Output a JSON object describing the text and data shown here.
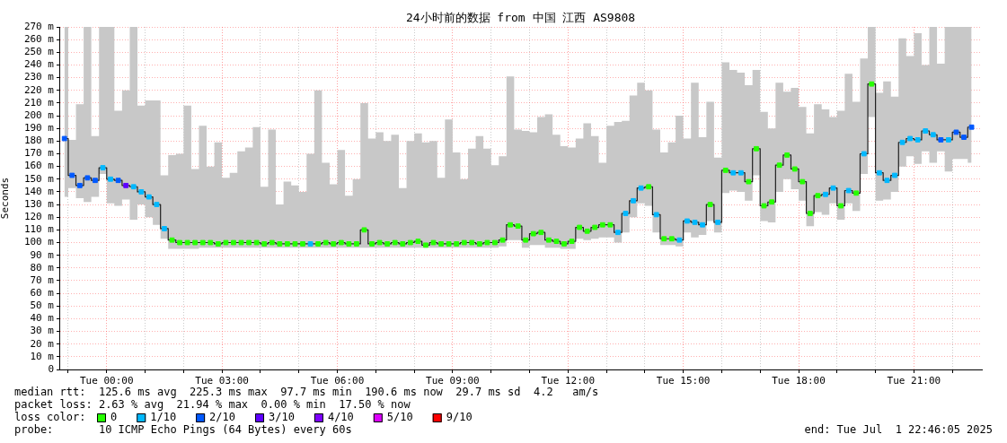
{
  "chart_data": {
    "type": "step",
    "title": "24小时前的数据 from 中国 江西 AS9808",
    "ylabel": "Seconds",
    "x": [
      "2025-06-30T22:54",
      "2025-06-30T23:06",
      "2025-06-30T23:18",
      "2025-06-30T23:30",
      "2025-06-30T23:42",
      "2025-06-30T23:54",
      "2025-07-01T00:06",
      "2025-07-01T00:18",
      "2025-07-01T00:30",
      "2025-07-01T00:42",
      "2025-07-01T00:54",
      "2025-07-01T01:06",
      "2025-07-01T01:18",
      "2025-07-01T01:30",
      "2025-07-01T01:42",
      "2025-07-01T01:54",
      "2025-07-01T02:06",
      "2025-07-01T02:18",
      "2025-07-01T02:30",
      "2025-07-01T02:42",
      "2025-07-01T02:54",
      "2025-07-01T03:06",
      "2025-07-01T03:18",
      "2025-07-01T03:30",
      "2025-07-01T03:42",
      "2025-07-01T03:54",
      "2025-07-01T04:06",
      "2025-07-01T04:18",
      "2025-07-01T04:30",
      "2025-07-01T04:42",
      "2025-07-01T04:54",
      "2025-07-01T05:06",
      "2025-07-01T05:18",
      "2025-07-01T05:30",
      "2025-07-01T05:42",
      "2025-07-01T05:54",
      "2025-07-01T06:06",
      "2025-07-01T06:18",
      "2025-07-01T06:30",
      "2025-07-01T06:42",
      "2025-07-01T06:54",
      "2025-07-01T07:06",
      "2025-07-01T07:18",
      "2025-07-01T07:30",
      "2025-07-01T07:42",
      "2025-07-01T07:54",
      "2025-07-01T08:06",
      "2025-07-01T08:18",
      "2025-07-01T08:30",
      "2025-07-01T08:42",
      "2025-07-01T08:54",
      "2025-07-01T09:06",
      "2025-07-01T09:18",
      "2025-07-01T09:30",
      "2025-07-01T09:42",
      "2025-07-01T09:54",
      "2025-07-01T10:06",
      "2025-07-01T10:18",
      "2025-07-01T10:30",
      "2025-07-01T10:42",
      "2025-07-01T10:54",
      "2025-07-01T11:06",
      "2025-07-01T11:18",
      "2025-07-01T11:30",
      "2025-07-01T11:42",
      "2025-07-01T11:54",
      "2025-07-01T12:06",
      "2025-07-01T12:18",
      "2025-07-01T12:30",
      "2025-07-01T12:42",
      "2025-07-01T12:54",
      "2025-07-01T13:06",
      "2025-07-01T13:18",
      "2025-07-01T13:30",
      "2025-07-01T13:42",
      "2025-07-01T13:54",
      "2025-07-01T14:06",
      "2025-07-01T14:18",
      "2025-07-01T14:30",
      "2025-07-01T14:42",
      "2025-07-01T14:54",
      "2025-07-01T15:06",
      "2025-07-01T15:18",
      "2025-07-01T15:30",
      "2025-07-01T15:42",
      "2025-07-01T15:54",
      "2025-07-01T16:06",
      "2025-07-01T16:18",
      "2025-07-01T16:30",
      "2025-07-01T16:42",
      "2025-07-01T16:54",
      "2025-07-01T17:06",
      "2025-07-01T17:18",
      "2025-07-01T17:30",
      "2025-07-01T17:42",
      "2025-07-01T17:54",
      "2025-07-01T18:06",
      "2025-07-01T18:18",
      "2025-07-01T18:30",
      "2025-07-01T18:42",
      "2025-07-01T18:54",
      "2025-07-01T19:06",
      "2025-07-01T19:18",
      "2025-07-01T19:30",
      "2025-07-01T19:42",
      "2025-07-01T19:54",
      "2025-07-01T20:06",
      "2025-07-01T20:18",
      "2025-07-01T20:30",
      "2025-07-01T20:42",
      "2025-07-01T20:54",
      "2025-07-01T21:06",
      "2025-07-01T21:18",
      "2025-07-01T21:30",
      "2025-07-01T21:42",
      "2025-07-01T21:54",
      "2025-07-01T22:06",
      "2025-07-01T22:18",
      "2025-07-01T22:30"
    ],
    "xlim": [
      "2025-06-30T22:46",
      "2025-07-01T22:46"
    ],
    "xticks": [
      {
        "value": "2025-06-30T23:00",
        "label": null
      },
      {
        "value": "2025-07-01T00:00",
        "label": "Tue 00:00"
      },
      {
        "value": "2025-07-01T01:00",
        "label": null
      },
      {
        "value": "2025-07-01T02:00",
        "label": null
      },
      {
        "value": "2025-07-01T03:00",
        "label": "Tue 03:00"
      },
      {
        "value": "2025-07-01T04:00",
        "label": null
      },
      {
        "value": "2025-07-01T05:00",
        "label": null
      },
      {
        "value": "2025-07-01T06:00",
        "label": "Tue 06:00"
      },
      {
        "value": "2025-07-01T07:00",
        "label": null
      },
      {
        "value": "2025-07-01T08:00",
        "label": null
      },
      {
        "value": "2025-07-01T09:00",
        "label": "Tue 09:00"
      },
      {
        "value": "2025-07-01T10:00",
        "label": null
      },
      {
        "value": "2025-07-01T11:00",
        "label": null
      },
      {
        "value": "2025-07-01T12:00",
        "label": "Tue 12:00"
      },
      {
        "value": "2025-07-01T13:00",
        "label": null
      },
      {
        "value": "2025-07-01T14:00",
        "label": null
      },
      {
        "value": "2025-07-01T15:00",
        "label": "Tue 15:00"
      },
      {
        "value": "2025-07-01T16:00",
        "label": null
      },
      {
        "value": "2025-07-01T17:00",
        "label": null
      },
      {
        "value": "2025-07-01T18:00",
        "label": "Tue 18:00"
      },
      {
        "value": "2025-07-01T19:00",
        "label": null
      },
      {
        "value": "2025-07-01T20:00",
        "label": null
      },
      {
        "value": "2025-07-01T21:00",
        "label": "Tue 21:00"
      },
      {
        "value": "2025-07-01T22:00",
        "label": null
      }
    ],
    "ylim": [
      0,
      270
    ],
    "yticks": [
      0,
      {
        "value": 10,
        "label": "10 m"
      },
      {
        "value": 20,
        "label": "20 m"
      },
      {
        "value": 30,
        "label": "30 m"
      },
      {
        "value": 40,
        "label": "40 m"
      },
      {
        "value": 50,
        "label": "50 m"
      },
      {
        "value": 60,
        "label": "60 m"
      },
      {
        "value": 70,
        "label": "70 m"
      },
      {
        "value": 80,
        "label": "80 m"
      },
      {
        "value": 90,
        "label": "90 m"
      },
      {
        "value": 100,
        "label": "100 m"
      },
      {
        "value": 110,
        "label": "110 m"
      },
      {
        "value": 120,
        "label": "120 m"
      },
      {
        "value": 130,
        "label": "130 m"
      },
      {
        "value": 140,
        "label": "140 m"
      },
      {
        "value": 150,
        "label": "150 m"
      },
      {
        "value": 160,
        "label": "160 m"
      },
      {
        "value": 170,
        "label": "170 m"
      },
      {
        "value": 180,
        "label": "180 m"
      },
      {
        "value": 190,
        "label": "190 m"
      },
      {
        "value": 200,
        "label": "200 m"
      },
      {
        "value": 210,
        "label": "210 m"
      },
      {
        "value": 220,
        "label": "220 m"
      },
      {
        "value": 230,
        "label": "230 m"
      },
      {
        "value": 240,
        "label": "240 m"
      },
      {
        "value": 250,
        "label": "250 m"
      },
      {
        "value": 260,
        "label": "260 m"
      },
      {
        "value": 270,
        "label": "270 m"
      }
    ],
    "grid": true,
    "legend": "bottom left",
    "legend_title": "loss color:",
    "series": [
      {
        "color": "#202020",
        "values": [
          182,
          153,
          145,
          151,
          149,
          159,
          150,
          149,
          145,
          144,
          140,
          136,
          130,
          111,
          102,
          100,
          100,
          100,
          100,
          100,
          99,
          100,
          100,
          100,
          100,
          100,
          99,
          100,
          99,
          99,
          99,
          99,
          99,
          99,
          100,
          99,
          100,
          99,
          99,
          110,
          99,
          100,
          99,
          100,
          99,
          100,
          101,
          98,
          100,
          99,
          99,
          99,
          100,
          100,
          99,
          100,
          100,
          102,
          114,
          113,
          102,
          107,
          108,
          102,
          101,
          99,
          101,
          112,
          109,
          112,
          114,
          114,
          108,
          123,
          133,
          143,
          144,
          122,
          103,
          103,
          102,
          117,
          116,
          114,
          130,
          116,
          157,
          155,
          155,
          148,
          174,
          129,
          132,
          161,
          169,
          158,
          148,
          123,
          137,
          138,
          143,
          129,
          141,
          139,
          170,
          225,
          155,
          149,
          153,
          179,
          182,
          181,
          188,
          185,
          181,
          181,
          187,
          183,
          191
        ],
        "lower": [
          136,
          143,
          135,
          132,
          136,
          154,
          131,
          129,
          134,
          118,
          130,
          120,
          114,
          103,
          95,
          95,
          95,
          95,
          96,
          96,
          96,
          96,
          96,
          96,
          96,
          96,
          96,
          96,
          96,
          96,
          96,
          96,
          96,
          96,
          96,
          96,
          96,
          96,
          96,
          96,
          96,
          96,
          96,
          96,
          96,
          96,
          96,
          96,
          96,
          96,
          96,
          96,
          96,
          96,
          96,
          96,
          96,
          97,
          102,
          102,
          96,
          98,
          98,
          96,
          96,
          95,
          95,
          103,
          102,
          103,
          104,
          104,
          100,
          108,
          120,
          131,
          129,
          108,
          98,
          98,
          97,
          108,
          104,
          106,
          117,
          108,
          139,
          141,
          140,
          133,
          153,
          117,
          116,
          140,
          150,
          142,
          133,
          113,
          124,
          122,
          131,
          118,
          131,
          125,
          154,
          199,
          133,
          134,
          140,
          160,
          168,
          162,
          172,
          163,
          172,
          156,
          166,
          166,
          163
        ],
        "upper": [
          270,
          181,
          209,
          270,
          184,
          270,
          270,
          204,
          220,
          270,
          208,
          212,
          212,
          153,
          169,
          170,
          208,
          158,
          192,
          160,
          179,
          151,
          155,
          172,
          175,
          191,
          144,
          189,
          130,
          148,
          145,
          140,
          170,
          220,
          163,
          146,
          173,
          137,
          150,
          210,
          182,
          187,
          180,
          185,
          143,
          180,
          186,
          179,
          180,
          151,
          197,
          171,
          150,
          174,
          184,
          174,
          161,
          168,
          231,
          189,
          188,
          187,
          199,
          201,
          185,
          176,
          175,
          182,
          194,
          184,
          163,
          192,
          195,
          196,
          216,
          226,
          220,
          189,
          171,
          179,
          200,
          182,
          226,
          183,
          211,
          167,
          242,
          236,
          234,
          224,
          236,
          203,
          190,
          226,
          219,
          222,
          207,
          186,
          209,
          205,
          199,
          204,
          233,
          211,
          245,
          270,
          218,
          227,
          215,
          261,
          247,
          265,
          240,
          270,
          241,
          270,
          270,
          270,
          270
        ]
      },
      {
        "type": "scatter",
        "marker": "square",
        "name": "0",
        "color": "#26ff00",
        "values": [
          null,
          null,
          null,
          null,
          null,
          null,
          null,
          null,
          null,
          null,
          null,
          null,
          null,
          null,
          102,
          100,
          100,
          100,
          100,
          100,
          99,
          100,
          100,
          100,
          100,
          100,
          99,
          100,
          99,
          99,
          99,
          99,
          null,
          99,
          100,
          99,
          100,
          99,
          99,
          110,
          99,
          100,
          99,
          100,
          99,
          100,
          101,
          98,
          100,
          99,
          99,
          99,
          100,
          100,
          99,
          100,
          100,
          102,
          114,
          113,
          102,
          107,
          108,
          102,
          101,
          99,
          101,
          112,
          109,
          112,
          114,
          114,
          null,
          null,
          null,
          null,
          144,
          null,
          103,
          103,
          null,
          null,
          null,
          null,
          130,
          null,
          157,
          null,
          null,
          148,
          174,
          129,
          132,
          161,
          169,
          158,
          148,
          123,
          137,
          null,
          null,
          129,
          null,
          139,
          null,
          225,
          null,
          null,
          null,
          null,
          null,
          null,
          null,
          null,
          null,
          null,
          null,
          null,
          null
        ]
      },
      {
        "type": "scatter",
        "marker": "square",
        "name": "1/10",
        "color": "#00b8ff",
        "x": [
          "2025-06-30T23:54",
          "2025-07-01T00:06",
          "2025-07-01T00:42",
          "2025-07-01T00:54",
          "2025-07-01T01:06",
          "2025-07-01T01:18",
          "2025-07-01T01:30",
          "2025-07-01T05:18",
          "2025-07-01T13:18",
          "2025-07-01T13:30",
          "2025-07-01T13:42",
          "2025-07-01T13:54",
          "2025-07-01T14:18",
          "2025-07-01T14:54",
          "2025-07-01T15:06",
          "2025-07-01T15:18",
          "2025-07-01T15:30",
          "2025-07-01T15:54",
          "2025-07-01T16:18",
          "2025-07-01T16:30",
          "2025-07-01T18:42",
          "2025-07-01T18:54",
          "2025-07-01T19:18",
          "2025-07-01T19:42",
          "2025-07-01T20:06",
          "2025-07-01T20:18",
          "2025-07-01T20:30",
          "2025-07-01T20:42",
          "2025-07-01T20:54",
          "2025-07-01T21:06",
          "2025-07-01T21:18",
          "2025-07-01T21:30",
          "2025-07-01T21:54"
        ],
        "values": [
          159,
          150,
          144,
          140,
          136,
          130,
          111,
          99,
          108,
          123,
          133,
          143,
          122,
          102,
          117,
          116,
          114,
          116,
          155,
          155,
          138,
          143,
          141,
          170,
          155,
          149,
          153,
          179,
          182,
          181,
          188,
          185,
          181
        ]
      },
      {
        "type": "scatter",
        "marker": "square",
        "name": "2/10",
        "color": "#0059ff",
        "x": [
          "2025-06-30T22:54",
          "2025-06-30T23:06",
          "2025-06-30T23:18",
          "2025-06-30T23:30",
          "2025-06-30T23:42",
          "2025-07-01T00:18",
          "2025-07-01T21:42",
          "2025-07-01T22:06",
          "2025-07-01T22:18",
          "2025-07-01T22:30"
        ],
        "values": [
          182,
          153,
          145,
          151,
          149,
          149,
          181,
          187,
          183,
          191
        ]
      },
      {
        "type": "scatter",
        "marker": "square",
        "name": "3/10",
        "color": "#5e00ff",
        "x": [
          "2025-07-01T00:30"
        ],
        "values": [
          145
        ]
      },
      {
        "type": "scatter",
        "marker": "square",
        "name": "4/10",
        "color": "#7e00ff",
        "values": [
          null,
          null,
          null,
          null,
          null,
          null,
          null,
          null,
          null,
          null,
          null,
          null,
          null,
          null,
          null,
          null,
          null,
          null,
          null,
          null,
          null,
          null,
          null,
          null,
          null,
          null,
          null,
          null,
          null,
          null,
          null,
          null,
          null,
          null,
          null,
          null,
          null,
          null,
          null,
          null,
          null,
          null,
          null,
          null,
          null,
          null,
          null,
          null,
          null,
          null,
          null,
          null,
          null,
          null,
          null,
          null,
          null,
          null,
          null,
          null,
          null,
          null,
          null,
          null,
          null,
          null,
          null,
          null,
          null,
          null,
          null,
          null,
          null,
          null,
          null,
          null,
          null,
          null,
          null,
          null,
          null,
          null,
          null,
          null,
          null,
          null,
          null,
          null,
          null,
          null,
          null,
          null,
          null,
          null,
          null,
          null,
          null,
          null,
          null,
          null,
          null,
          null,
          null,
          null,
          null,
          null,
          null,
          null,
          null,
          null,
          null,
          null,
          null,
          null,
          null,
          null,
          null,
          null,
          null
        ]
      },
      {
        "type": "scatter",
        "marker": "square",
        "name": "5/10",
        "color": "#dd00ff",
        "values": [
          null,
          null,
          null,
          null,
          null,
          null,
          null,
          null,
          null,
          null,
          null,
          null,
          null,
          null,
          null,
          null,
          null,
          null,
          null,
          null,
          null,
          null,
          null,
          null,
          null,
          null,
          null,
          null,
          null,
          null,
          null,
          null,
          null,
          null,
          null,
          null,
          null,
          null,
          null,
          null,
          null,
          null,
          null,
          null,
          null,
          null,
          null,
          null,
          null,
          null,
          null,
          null,
          null,
          null,
          null,
          null,
          null,
          null,
          null,
          null,
          null,
          null,
          null,
          null,
          null,
          null,
          null,
          null,
          null,
          null,
          null,
          null,
          null,
          null,
          null,
          null,
          null,
          null,
          null,
          null,
          null,
          null,
          null,
          null,
          null,
          null,
          null,
          null,
          null,
          null,
          null,
          null,
          null,
          null,
          null,
          null,
          null,
          null,
          null,
          null,
          null,
          null,
          null,
          null,
          null,
          null,
          null,
          null,
          null,
          null,
          null,
          null,
          null,
          null,
          null,
          null,
          null,
          null,
          null
        ]
      },
      {
        "type": "scatter",
        "marker": "square",
        "name": "9/10",
        "color": "#ff0000",
        "values": [
          null,
          null,
          null,
          null,
          null,
          null,
          null,
          null,
          null,
          null,
          null,
          null,
          null,
          null,
          null,
          null,
          null,
          null,
          null,
          null,
          null,
          null,
          null,
          null,
          null,
          null,
          null,
          null,
          null,
          null,
          null,
          null,
          null,
          null,
          null,
          null,
          null,
          null,
          null,
          null,
          null,
          null,
          null,
          null,
          null,
          null,
          null,
          null,
          null,
          null,
          null,
          null,
          null,
          null,
          null,
          null,
          null,
          null,
          null,
          null,
          null,
          null,
          null,
          null,
          null,
          null,
          null,
          null,
          null,
          null,
          null,
          null,
          null,
          null,
          null,
          null,
          null,
          null,
          null,
          null,
          null,
          null,
          null,
          null,
          null,
          null,
          null,
          null,
          null,
          null,
          null,
          null,
          null,
          null,
          null,
          null,
          null,
          null,
          null,
          null,
          null,
          null,
          null,
          null,
          null,
          null,
          null,
          null,
          null,
          null,
          null,
          null,
          null,
          null,
          null,
          null,
          null,
          null,
          null
        ]
      }
    ],
    "annotations": [
      "median rtt:  125.6 ms avg  225.3 ms max  97.7 ms min  190.6 ms now  29.7 ms sd  4.2   am/s",
      "packet loss: 2.63 % avg  21.94 % max  0.00 % min  17.50 % now",
      "probe:       10 ICMP Echo Pings (64 Bytes) every 60s",
      "end: Tue Jul  1 22:46:05 2025"
    ]
  }
}
